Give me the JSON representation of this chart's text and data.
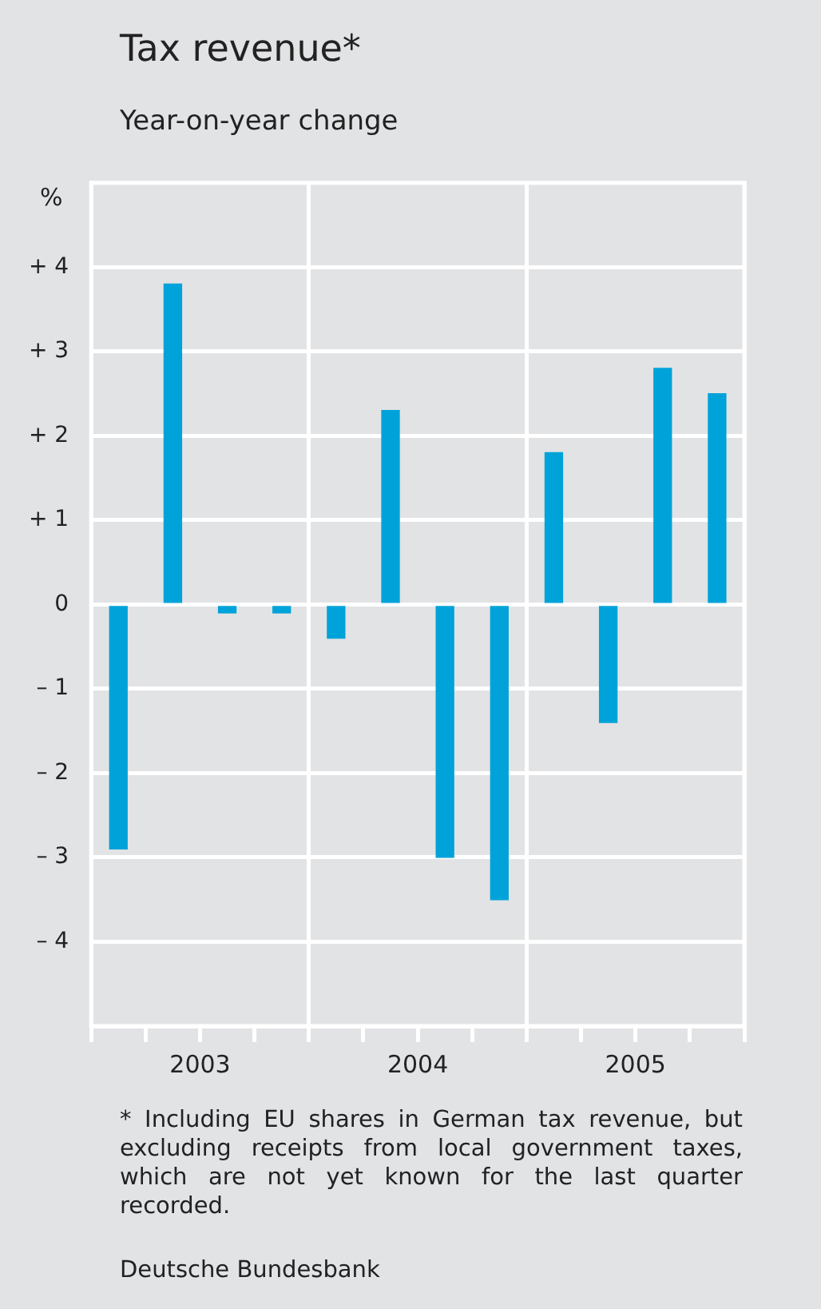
{
  "chart_data": {
    "type": "bar",
    "title": "Tax revenue*",
    "subtitle": "Year-on-year change",
    "ylabel": "%",
    "x": [
      2003.125,
      2003.375,
      2003.625,
      2003.875,
      2004.125,
      2004.375,
      2004.625,
      2004.875,
      2005.125,
      2005.375,
      2005.625,
      2005.875
    ],
    "values": [
      -2.9,
      3.8,
      -0.1,
      -0.1,
      -0.4,
      2.3,
      -3.0,
      -3.5,
      1.8,
      -1.4,
      2.8,
      2.5
    ],
    "color": "#00a3d9",
    "xlim": [
      2003,
      2006
    ],
    "xticks": [
      {
        "value": 2003,
        "label": null
      },
      {
        "value": 2003.25,
        "label": null
      },
      {
        "value": 2003.5,
        "label": "2003"
      },
      {
        "value": 2003.75,
        "label": null
      },
      {
        "value": 2004,
        "label": null
      },
      {
        "value": 2004.25,
        "label": null
      },
      {
        "value": 2004.5,
        "label": "2004"
      },
      {
        "value": 2004.75,
        "label": null
      },
      {
        "value": 2005,
        "label": null
      },
      {
        "value": 2005.25,
        "label": null
      },
      {
        "value": 2005.5,
        "label": "2005"
      },
      {
        "value": 2005.75,
        "label": null
      },
      {
        "value": 2006,
        "label": null
      }
    ],
    "ylim": [
      -5,
      5
    ],
    "yticks": [
      {
        "value": -4,
        "label": "– 4"
      },
      {
        "value": -3,
        "label": "– 3"
      },
      {
        "value": -2,
        "label": "– 2"
      },
      {
        "value": -1,
        "label": "– 1"
      },
      0,
      {
        "value": 1,
        "label": "+ 1"
      },
      {
        "value": 2,
        "label": "+ 2"
      },
      {
        "value": 3,
        "label": "+ 3"
      },
      {
        "value": 4,
        "label": "+ 4"
      }
    ],
    "grid": true,
    "legend": false,
    "annotations": [
      "* Including EU shares in German tax revenue, but excluding receipts from local government taxes, which are not yet known for the last quarter recorded.",
      "Deutsche Bundesbank"
    ]
  }
}
